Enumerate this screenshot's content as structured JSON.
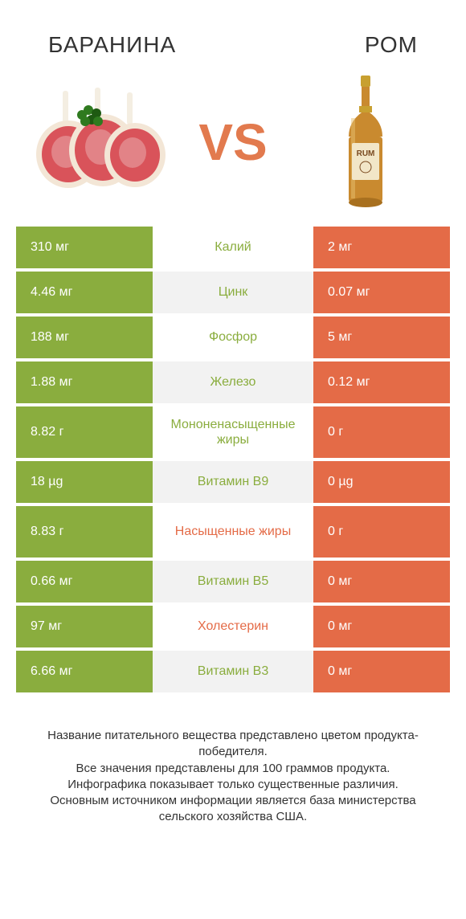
{
  "header": {
    "left_title": "БАРАНИНА",
    "right_title": "РОМ",
    "vs": "VS"
  },
  "colors": {
    "left_bar": "#8aad3e",
    "right_bar": "#e46b47",
    "mid_bg_alt": "#f2f2f2",
    "mid_bg": "#ffffff",
    "winner_left_text": "#8aad3e",
    "winner_right_text": "#e46b47"
  },
  "left_image": {
    "meat_fill": "#d9535a",
    "meat_light": "#e8a3a5",
    "fat": "#f3e6d6",
    "bone": "#f4eee2",
    "herb": "#2f7a1f",
    "herb_dark": "#1e5a12"
  },
  "right_image": {
    "glass": "#e8c070",
    "liquid": "#c98a2f",
    "cap": "#c8a030",
    "label_bg": "#f2e6c8",
    "label_text": "RUM",
    "label_text_color": "#7a4a20"
  },
  "rows": [
    {
      "left": "310 мг",
      "label": "Калий",
      "right": "2 мг",
      "winner": "left",
      "tall": false
    },
    {
      "left": "4.46 мг",
      "label": "Цинк",
      "right": "0.07 мг",
      "winner": "left",
      "tall": false
    },
    {
      "left": "188 мг",
      "label": "Фосфор",
      "right": "5 мг",
      "winner": "left",
      "tall": false
    },
    {
      "left": "1.88 мг",
      "label": "Железо",
      "right": "0.12 мг",
      "winner": "left",
      "tall": false
    },
    {
      "left": "8.82 г",
      "label": "Мононенасыщенные жиры",
      "right": "0 г",
      "winner": "left",
      "tall": true
    },
    {
      "left": "18 µg",
      "label": "Витамин B9",
      "right": "0 µg",
      "winner": "left",
      "tall": false
    },
    {
      "left": "8.83 г",
      "label": "Насыщенные жиры",
      "right": "0 г",
      "winner": "right",
      "tall": true
    },
    {
      "left": "0.66 мг",
      "label": "Витамин B5",
      "right": "0 мг",
      "winner": "left",
      "tall": false
    },
    {
      "left": "97 мг",
      "label": "Холестерин",
      "right": "0 мг",
      "winner": "right",
      "tall": false
    },
    {
      "left": "6.66 мг",
      "label": "Витамин B3",
      "right": "0 мг",
      "winner": "left",
      "tall": false
    }
  ],
  "footnote": "Название питательного вещества представлено цветом продукта-победителя.\nВсе значения представлены для 100 граммов продукта.\nИнфографика показывает только существенные различия.\nОсновным источником информации является база министерства сельского хозяйства США."
}
